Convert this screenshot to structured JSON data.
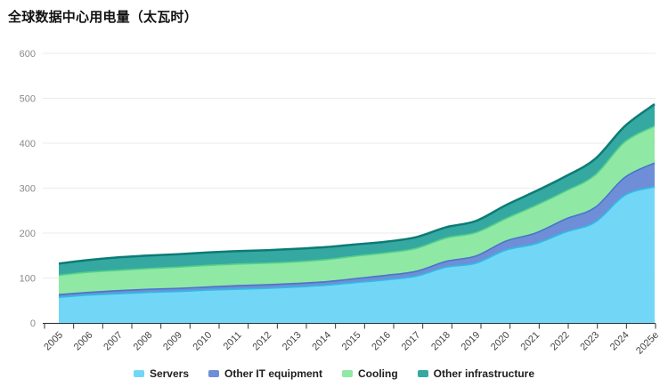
{
  "title": "全球数据中心用电量（太瓦时）",
  "legend": {
    "items": [
      {
        "label": "Servers",
        "color": "#72d7f6"
      },
      {
        "label": "Other IT equipment",
        "color": "#6e8fd8"
      },
      {
        "label": "Cooling",
        "color": "#90e8a5"
      },
      {
        "label": "Other infrastructure",
        "color": "#35a9a1"
      }
    ]
  },
  "axes": {
    "yticks": [
      "0",
      "100",
      "200",
      "300",
      "400",
      "500",
      "600"
    ],
    "xticks": [
      "2005",
      "2006",
      "2007",
      "2008",
      "2009",
      "2010",
      "2011",
      "2012",
      "2013",
      "2014",
      "2015",
      "2016",
      "2017",
      "2018",
      "2019",
      "2020",
      "2021",
      "2022",
      "2023",
      "2024",
      "2025e"
    ]
  },
  "chart_data": {
    "type": "area",
    "stacked": true,
    "title": "全球数据中心用电量（太瓦时）",
    "xlabel": "",
    "ylabel": "",
    "ylim": [
      0,
      600
    ],
    "grid": true,
    "legend_position": "bottom",
    "x": [
      "2005",
      "2006",
      "2007",
      "2008",
      "2009",
      "2010",
      "2011",
      "2012",
      "2013",
      "2014",
      "2015",
      "2016",
      "2017",
      "2018",
      "2019",
      "2020",
      "2021",
      "2022",
      "2023",
      "2024",
      "2025e"
    ],
    "series": [
      {
        "name": "Servers",
        "fill": "#72d7f6",
        "stroke": "#30bce4",
        "values": [
          57,
          62,
          65,
          68,
          70,
          73,
          75,
          77,
          80,
          84,
          90,
          96,
          104,
          124,
          133,
          162,
          176,
          202,
          224,
          284,
          303
        ]
      },
      {
        "name": "Other IT equipment",
        "fill": "#6e8fd8",
        "stroke": "#4a74c9",
        "values": [
          6,
          6,
          7,
          7,
          7,
          7,
          8,
          8,
          8,
          8,
          9,
          10,
          11,
          13,
          16,
          20,
          24,
          29,
          33,
          40,
          53
        ]
      },
      {
        "name": "Cooling",
        "fill": "#90e8a5",
        "stroke": "#55d189",
        "values": [
          43,
          45,
          45,
          46,
          47,
          48,
          48,
          48,
          48,
          49,
          50,
          50,
          51,
          52,
          52,
          50,
          61,
          62,
          72,
          79,
          82
        ]
      },
      {
        "name": "Other infrastructure",
        "fill": "#35a9a1",
        "stroke": "#0c7b76",
        "values": [
          26,
          27,
          29,
          29,
          29,
          29,
          29,
          29,
          29,
          28,
          26,
          25,
          25,
          24,
          26,
          30,
          32,
          33,
          36,
          35,
          49
        ]
      }
    ]
  }
}
